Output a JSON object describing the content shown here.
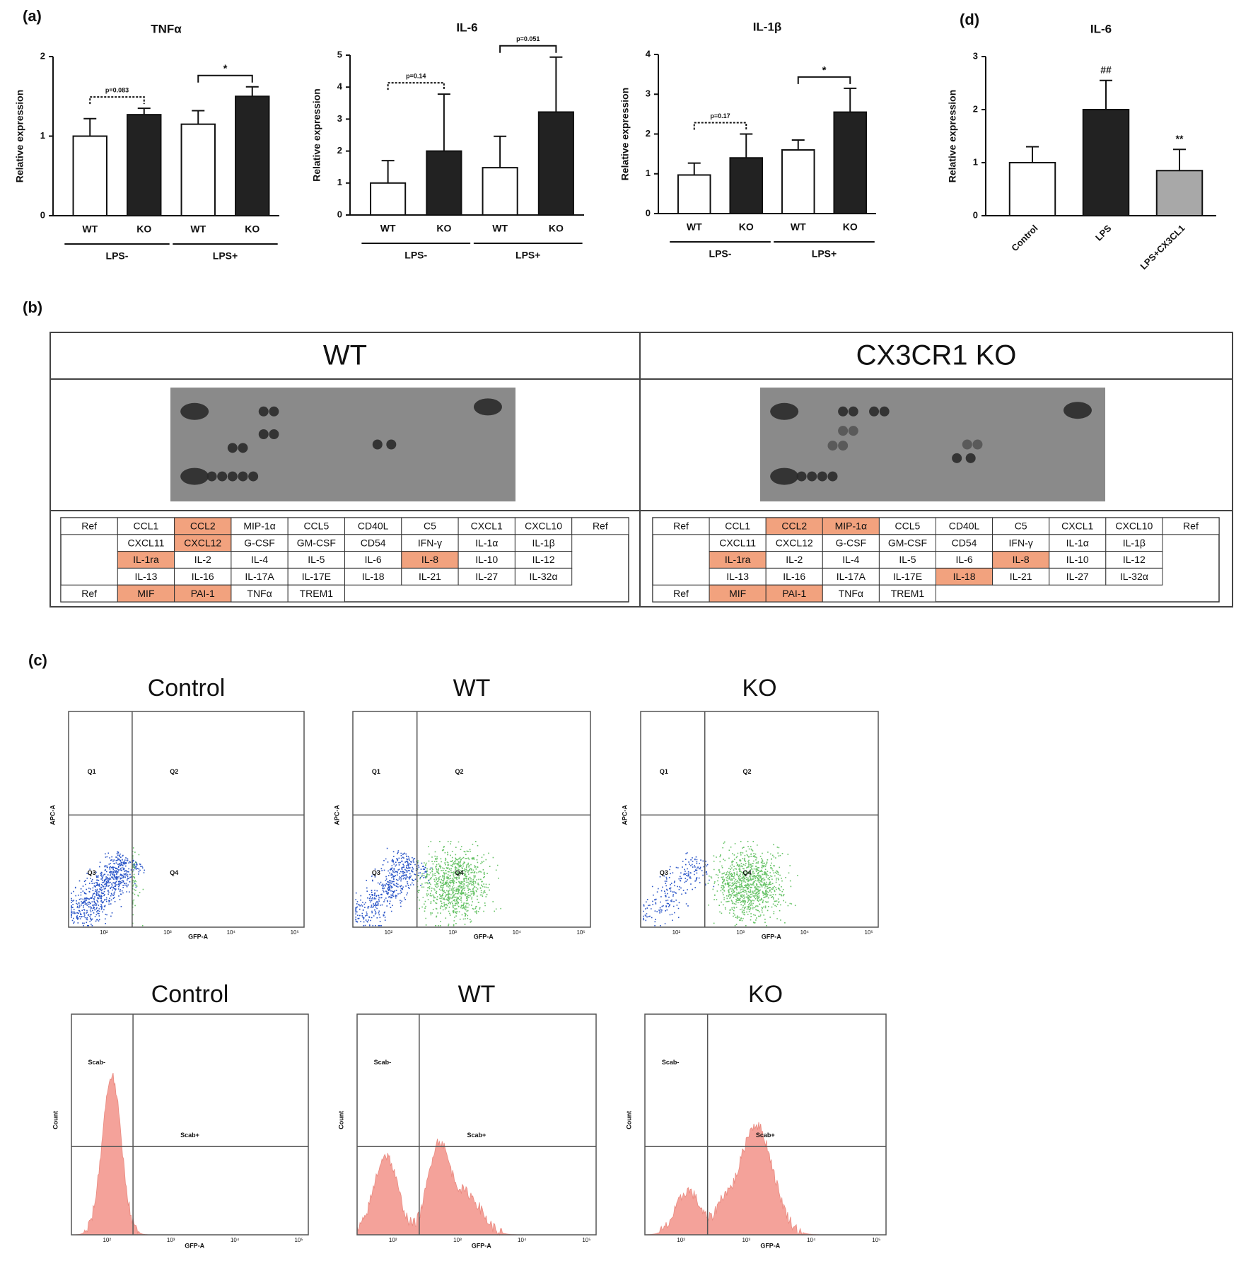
{
  "chart_data": [
    {
      "type": "bar",
      "title": "TNFα",
      "ylabel": "Relative expression",
      "categories": [
        "WT",
        "KO",
        "WT",
        "KO"
      ],
      "groups": [
        "LPS-",
        "LPS+"
      ],
      "values": [
        1.0,
        1.27,
        1.15,
        1.5
      ],
      "errors": [
        0.22,
        0.08,
        0.17,
        0.12
      ],
      "colors": [
        "#ffffff",
        "#222222",
        "#ffffff",
        "#222222"
      ],
      "ylim": [
        0,
        2
      ],
      "yticks": [
        0,
        1,
        2
      ],
      "annotations": [
        {
          "text": "p=0.083",
          "bars": [
            0,
            1
          ],
          "line": "dashed"
        },
        {
          "text": "*",
          "bars": [
            2,
            3
          ],
          "line": "solid"
        }
      ]
    },
    {
      "type": "bar",
      "title": "IL-6",
      "ylabel": "Relative expression",
      "categories": [
        "WT",
        "KO",
        "WT",
        "KO"
      ],
      "groups": [
        "LPS-",
        "LPS+"
      ],
      "values": [
        1.0,
        2.0,
        1.48,
        3.22
      ],
      "errors": [
        0.7,
        1.78,
        0.98,
        1.72
      ],
      "colors": [
        "#ffffff",
        "#222222",
        "#ffffff",
        "#222222"
      ],
      "ylim": [
        0,
        5
      ],
      "yticks": [
        0,
        1,
        2,
        3,
        4,
        5
      ],
      "annotations": [
        {
          "text": "p=0.14",
          "bars": [
            0,
            1
          ],
          "line": "dashed"
        },
        {
          "text": "p=0.051",
          "bars": [
            2,
            3
          ],
          "line": "solid"
        }
      ]
    },
    {
      "type": "bar",
      "title": "IL-1β",
      "ylabel": "Relative expression",
      "categories": [
        "WT",
        "KO",
        "WT",
        "KO"
      ],
      "groups": [
        "LPS-",
        "LPS+"
      ],
      "values": [
        0.97,
        1.4,
        1.6,
        2.55
      ],
      "errors": [
        0.3,
        0.6,
        0.25,
        0.6
      ],
      "colors": [
        "#ffffff",
        "#222222",
        "#ffffff",
        "#222222"
      ],
      "ylim": [
        0,
        4
      ],
      "yticks": [
        0,
        1,
        2,
        3,
        4
      ],
      "annotations": [
        {
          "text": "p=0.17",
          "bars": [
            0,
            1
          ],
          "line": "dashed"
        },
        {
          "text": "*",
          "bars": [
            2,
            3
          ],
          "line": "solid"
        }
      ]
    },
    {
      "type": "bar",
      "title": "IL-6",
      "ylabel": "Relative expression",
      "categories": [
        "Control",
        "LPS",
        "LPS+CX3CL1"
      ],
      "values": [
        1.0,
        2.0,
        0.85
      ],
      "errors": [
        0.3,
        0.55,
        0.4
      ],
      "colors": [
        "#ffffff",
        "#222222",
        "#a8a8a8"
      ],
      "ylim": [
        0,
        3
      ],
      "yticks": [
        0,
        1,
        2,
        3
      ],
      "annotations": [
        {
          "text": "##",
          "bars": [
            1
          ],
          "line": "none"
        },
        {
          "text": "**",
          "bars": [
            2
          ],
          "line": "none"
        }
      ]
    }
  ],
  "panel_labels": [
    "(a)",
    "(b)",
    "(c)",
    "(d)"
  ],
  "array": {
    "highlight_color": "#f2a27e",
    "halves": [
      {
        "title": "WT",
        "highlighted": [
          "CCL2",
          "CXCL12",
          "IL-1ra",
          "IL-8",
          "MIF",
          "PAI-1"
        ],
        "rows": [
          [
            "Ref",
            "CCL1",
            "CCL2",
            "MIP-1α",
            "CCL5",
            "CD40L",
            "C5",
            "CXCL1",
            "CXCL10",
            "Ref"
          ],
          [
            null,
            "CXCL11",
            "CXCL12",
            "G-CSF",
            "GM-CSF",
            "CD54",
            "IFN-γ",
            "IL-1α",
            "IL-1β",
            null
          ],
          [
            null,
            "IL-1ra",
            "IL-2",
            "IL-4",
            "IL-5",
            "IL-6",
            "IL-8",
            "IL-10",
            "IL-12",
            null
          ],
          [
            null,
            "IL-13",
            "IL-16",
            "IL-17A",
            "IL-17E",
            "IL-18",
            "IL-21",
            "IL-27",
            "IL-32α",
            null
          ],
          [
            "Ref",
            "MIF",
            "PAI-1",
            "TNFα",
            "TREM1",
            null,
            null,
            null,
            null,
            null
          ]
        ]
      },
      {
        "title": "CX3CR1 KO",
        "highlighted": [
          "CCL2",
          "MIP-1α",
          "IL-1ra",
          "IL-8",
          "IL-18",
          "MIF",
          "PAI-1"
        ],
        "rows": [
          [
            "Ref",
            "CCL1",
            "CCL2",
            "MIP-1α",
            "CCL5",
            "CD40L",
            "C5",
            "CXCL1",
            "CXCL10",
            "Ref"
          ],
          [
            null,
            "CXCL11",
            "CXCL12",
            "G-CSF",
            "GM-CSF",
            "CD54",
            "IFN-γ",
            "IL-1α",
            "IL-1β",
            null
          ],
          [
            null,
            "IL-1ra",
            "IL-2",
            "IL-4",
            "IL-5",
            "IL-6",
            "IL-8",
            "IL-10",
            "IL-12",
            null
          ],
          [
            null,
            "IL-13",
            "IL-16",
            "IL-17A",
            "IL-17E",
            "IL-18",
            "IL-21",
            "IL-27",
            "IL-32α",
            null
          ],
          [
            "Ref",
            "MIF",
            "PAI-1",
            "TNFα",
            "TREM1",
            null,
            null,
            null,
            null,
            null
          ]
        ]
      }
    ]
  },
  "flow": {
    "scatter": {
      "titles": [
        "Control",
        "WT",
        "KO"
      ],
      "quadrants": [
        "Q1",
        "Q2",
        "Q3",
        "Q4"
      ],
      "xlabel": "GFP-A",
      "ylabel": "APC-A"
    },
    "histogram": {
      "titles": [
        "Control",
        "WT",
        "KO"
      ],
      "gates": [
        "Scab-",
        "Scab+"
      ],
      "xlabel": "GFP-A",
      "ylabel": "Count"
    },
    "xticks": [
      "10²",
      "10³",
      "10⁴",
      "10⁵"
    ]
  }
}
